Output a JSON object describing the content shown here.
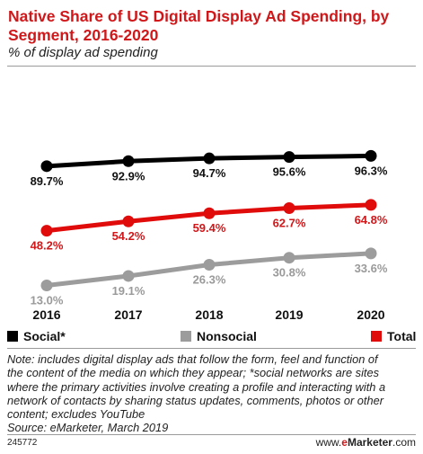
{
  "header": {
    "title": "Native Share of US Digital Display Ad Spending, by Segment, 2016-2020",
    "subtitle": "% of display ad spending"
  },
  "chart_data": {
    "type": "line",
    "categories": [
      "2016",
      "2017",
      "2018",
      "2019",
      "2020"
    ],
    "ylim": [
      0,
      100
    ],
    "grid": false,
    "legend_position": "bottom",
    "series": [
      {
        "name": "Social*",
        "color": "#000000",
        "values": [
          89.7,
          92.9,
          94.7,
          95.6,
          96.3
        ],
        "labels": [
          "89.7%",
          "92.9%",
          "94.7%",
          "95.6%",
          "96.3%"
        ]
      },
      {
        "name": "Total",
        "color": "#e00b0b",
        "values": [
          48.2,
          54.2,
          59.4,
          62.7,
          64.8
        ],
        "labels": [
          "48.2%",
          "54.2%",
          "59.4%",
          "62.7%",
          "64.8%"
        ]
      },
      {
        "name": "Nonsocial",
        "color": "#9c9c9c",
        "values": [
          13.0,
          19.1,
          26.3,
          30.8,
          33.6
        ],
        "labels": [
          "13.0%",
          "19.1%",
          "26.3%",
          "30.8%",
          "33.6%"
        ]
      }
    ]
  },
  "legend": {
    "social": {
      "label": "Social*",
      "color": "#000000"
    },
    "nonsocial": {
      "label": "Nonsocial",
      "color": "#9c9c9c"
    },
    "total": {
      "label": "Total",
      "color": "#e00b0b"
    }
  },
  "note": {
    "line1": "Note: includes digital display ads that follow the form, feel and function of",
    "line2": "the content of the media on which they appear; *social networks are sites",
    "line3": "where the primary activities involve creating a profile and interacting with a",
    "line4": "network of contacts by sharing status updates, comments, photos or other",
    "line5": "content; excludes YouTube",
    "source": "Source: eMarketer, March 2019"
  },
  "footer": {
    "chart_id": "245772",
    "brand_prefix": "www.",
    "brand_e": "e",
    "brand_rest": "Marketer",
    "brand_suffix": ".com"
  }
}
